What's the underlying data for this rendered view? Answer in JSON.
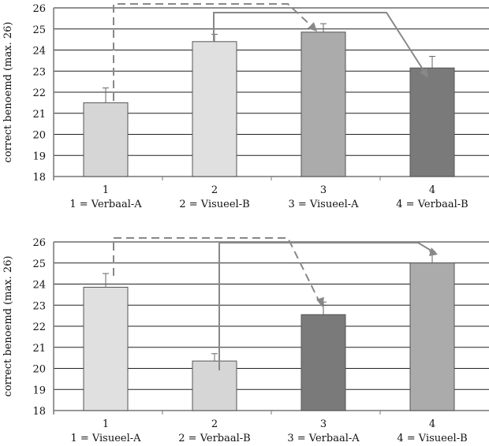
{
  "chart_data": [
    {
      "type": "bar",
      "ylabel": "correct benoemd (max. 26)",
      "ylim": [
        18,
        26
      ],
      "yticks": [
        18,
        19,
        20,
        21,
        22,
        23,
        24,
        25,
        26
      ],
      "categories": [
        "1",
        "2",
        "3",
        "4"
      ],
      "category_labels": [
        "1 = Verbaal-A",
        "2 = Visueel-B",
        "3 = Visueel-A",
        "4 = Verbaal-B"
      ],
      "values": [
        21.5,
        24.4,
        24.85,
        23.15
      ],
      "error_upper": [
        22.2,
        24.75,
        25.25,
        23.7
      ],
      "colors": [
        "#d6d6d6",
        "#e0e0e0",
        "#ababab",
        "#7a7a7a"
      ],
      "grid": true
    },
    {
      "type": "bar",
      "ylabel": "correct benoemd (max. 26)",
      "ylim": [
        18,
        26
      ],
      "yticks": [
        18,
        19,
        20,
        21,
        22,
        23,
        24,
        25,
        26
      ],
      "categories": [
        "1",
        "2",
        "3",
        "4"
      ],
      "category_labels": [
        "1 = Visueel-A",
        "2 = Verbaal-B",
        "3 = Verbaal-A",
        "4 = Visueel-B"
      ],
      "values": [
        23.85,
        20.35,
        22.55,
        25.0
      ],
      "error_upper": [
        24.5,
        20.7,
        23.15,
        25.55
      ],
      "colors": [
        "#e0e0e0",
        "#d6d6d6",
        "#7a7a7a",
        "#ababab"
      ],
      "grid": true
    }
  ]
}
